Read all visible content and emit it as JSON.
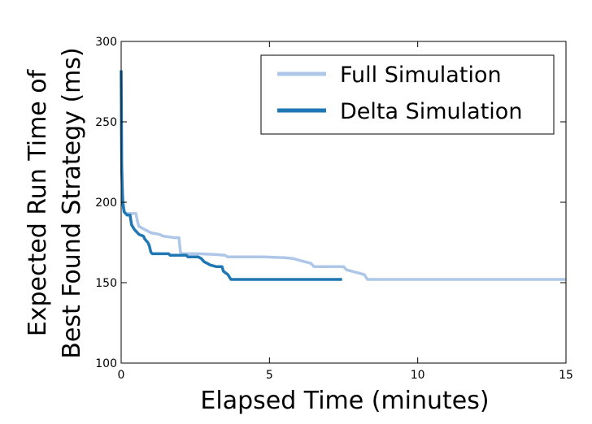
{
  "chart_data": {
    "type": "line",
    "title": "",
    "xlabel": "Elapsed Time (minutes)",
    "ylabel_lines": [
      "Expected Run Time of",
      "Best Found Strategy (ms)"
    ],
    "xlim": [
      0,
      15
    ],
    "ylim": [
      100,
      300
    ],
    "xticks": [
      0,
      5,
      10,
      15
    ],
    "xtick_labels": [
      "0",
      "5",
      "10",
      "15"
    ],
    "yticks": [
      100,
      150,
      200,
      250,
      300
    ],
    "ytick_labels": [
      "100",
      "150",
      "200",
      "250",
      "300"
    ],
    "grid": false,
    "legend_position": "top-right",
    "series": [
      {
        "name": "Full Simulation",
        "color": "#aec7e8",
        "points": [
          [
            0,
            282
          ],
          [
            0.02,
            225
          ],
          [
            0.05,
            205
          ],
          [
            0.1,
            195
          ],
          [
            0.15,
            193
          ],
          [
            0.5,
            193
          ],
          [
            0.55,
            188
          ],
          [
            0.6,
            185
          ],
          [
            0.8,
            183
          ],
          [
            0.9,
            182
          ],
          [
            1.0,
            181
          ],
          [
            1.3,
            180
          ],
          [
            1.4,
            179
          ],
          [
            1.8,
            178
          ],
          [
            1.95,
            178
          ],
          [
            2.0,
            169
          ],
          [
            2.05,
            168
          ],
          [
            2.6,
            168
          ],
          [
            3.2,
            167.5
          ],
          [
            3.5,
            167
          ],
          [
            3.6,
            166
          ],
          [
            4.8,
            166
          ],
          [
            5.5,
            165.5
          ],
          [
            5.8,
            165
          ],
          [
            6.0,
            164
          ],
          [
            6.2,
            163
          ],
          [
            6.4,
            162
          ],
          [
            6.5,
            160
          ],
          [
            7.5,
            160
          ],
          [
            7.6,
            158
          ],
          [
            7.8,
            157
          ],
          [
            8.0,
            156
          ],
          [
            8.2,
            155
          ],
          [
            8.3,
            152
          ],
          [
            15,
            152
          ]
        ]
      },
      {
        "name": "Delta Simulation",
        "color": "#1f77b4",
        "points": [
          [
            0,
            282
          ],
          [
            0.02,
            220
          ],
          [
            0.05,
            200
          ],
          [
            0.1,
            194
          ],
          [
            0.2,
            192
          ],
          [
            0.3,
            192
          ],
          [
            0.35,
            186
          ],
          [
            0.45,
            183
          ],
          [
            0.6,
            180
          ],
          [
            0.75,
            179
          ],
          [
            0.8,
            177
          ],
          [
            0.85,
            176
          ],
          [
            0.9,
            175
          ],
          [
            0.95,
            173
          ],
          [
            1.0,
            169
          ],
          [
            1.05,
            168
          ],
          [
            1.6,
            168
          ],
          [
            1.65,
            167
          ],
          [
            2.2,
            167
          ],
          [
            2.25,
            166
          ],
          [
            2.6,
            166
          ],
          [
            2.7,
            165
          ],
          [
            2.8,
            163
          ],
          [
            2.9,
            162
          ],
          [
            3.0,
            161
          ],
          [
            3.2,
            160
          ],
          [
            3.4,
            160
          ],
          [
            3.45,
            157
          ],
          [
            3.6,
            155
          ],
          [
            3.7,
            152
          ],
          [
            7.45,
            152
          ]
        ]
      }
    ]
  }
}
